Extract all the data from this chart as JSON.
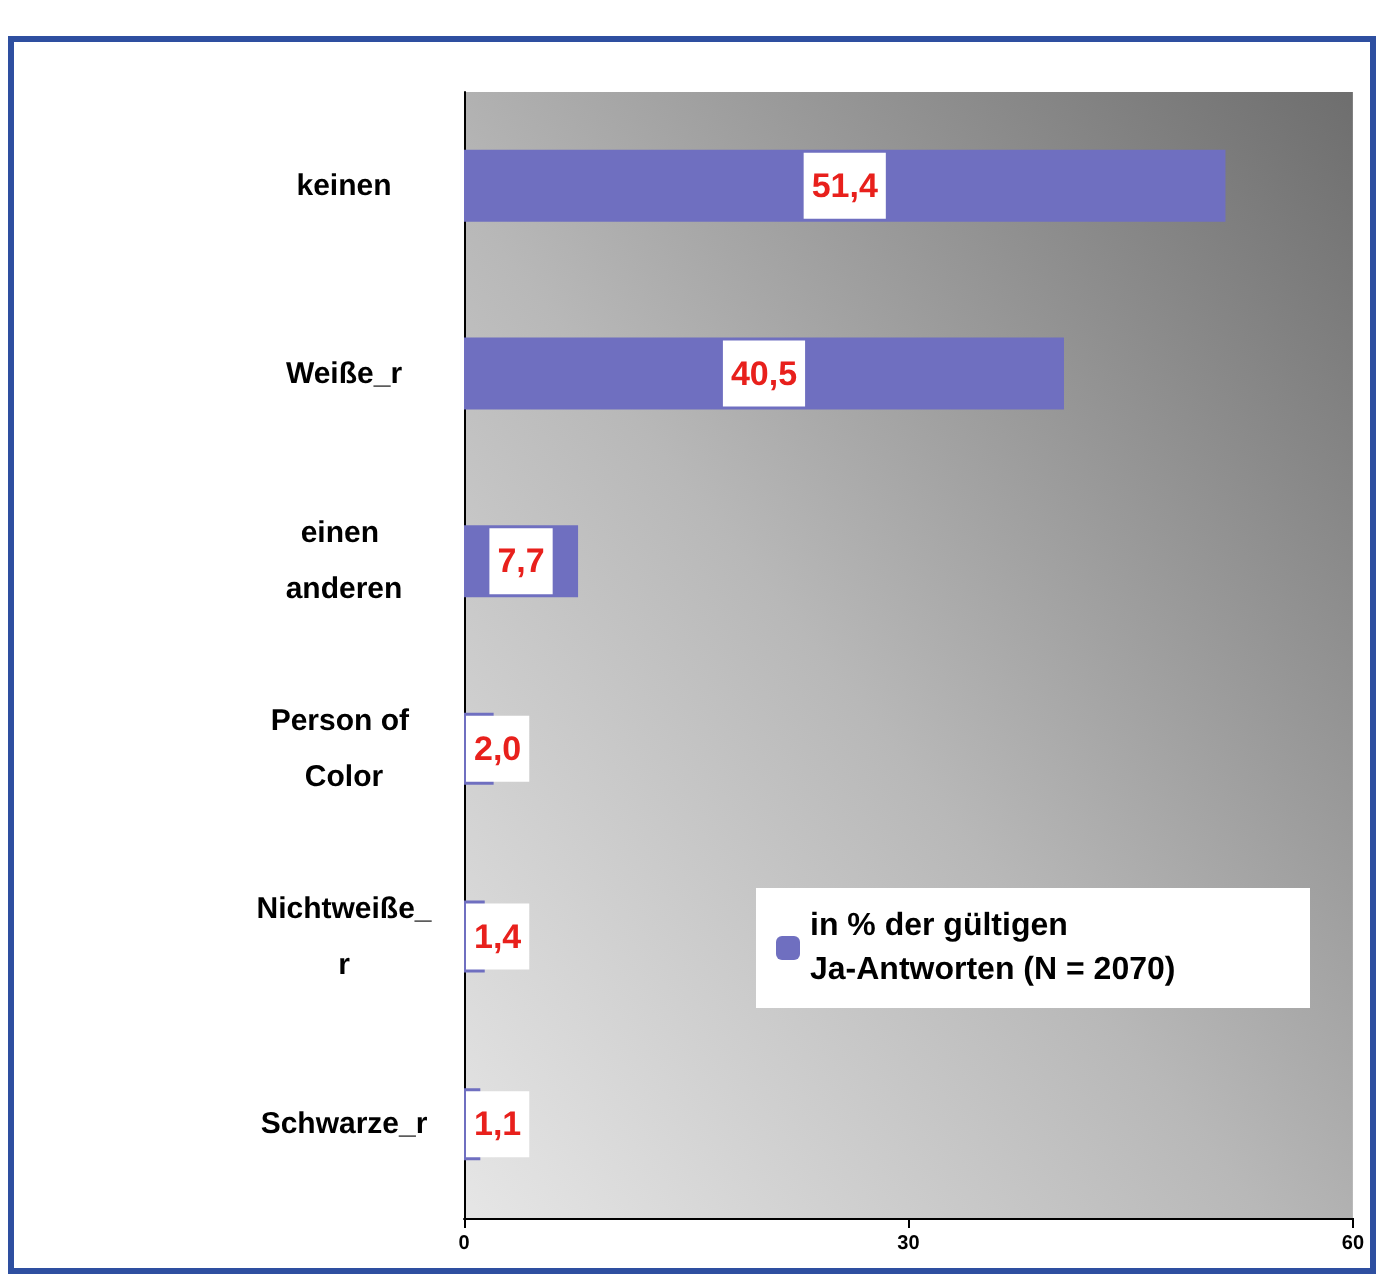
{
  "chart_data": {
    "type": "bar",
    "orientation": "horizontal",
    "categories": [
      "keinen",
      "Weiße_r",
      "einen anderen",
      "Person of Color",
      "Nichtweiße_r",
      "Schwarze_r"
    ],
    "series": [
      {
        "name": "in % der gültigen Ja-Antworten (N = 2070)",
        "color": "#6f6fc0",
        "values": [
          51.4,
          40.5,
          7.7,
          2.0,
          1.4,
          1.1
        ],
        "value_labels": [
          "51,4",
          "40,5",
          "7,7",
          "2,0",
          "1,4",
          "1,1"
        ]
      }
    ],
    "xlim": [
      0,
      60
    ],
    "xticks": [
      0,
      30,
      60
    ],
    "grid": false,
    "legend": "bottom right"
  }
}
